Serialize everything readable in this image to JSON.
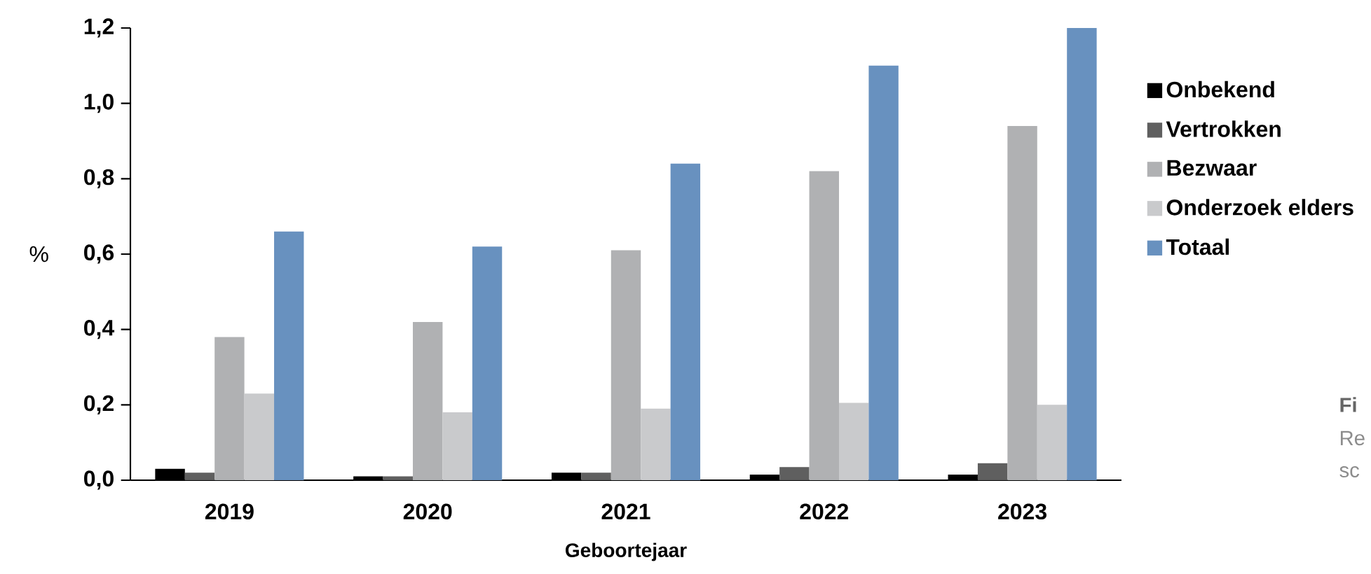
{
  "chart_data": {
    "type": "bar",
    "xlabel": "Geboortejaar",
    "ylabel": "%",
    "categories": [
      "2019",
      "2020",
      "2021",
      "2022",
      "2023"
    ],
    "series": [
      {
        "name": "Onbekend",
        "color": "#000000",
        "values": [
          0.03,
          0.01,
          0.02,
          0.015,
          0.015
        ]
      },
      {
        "name": "Vertrokken",
        "color": "#5f5f5f",
        "values": [
          0.02,
          0.01,
          0.02,
          0.035,
          0.045
        ]
      },
      {
        "name": "Bezwaar",
        "color": "#b0b1b3",
        "values": [
          0.38,
          0.42,
          0.61,
          0.82,
          0.94
        ]
      },
      {
        "name": "Onderzoek elders",
        "color": "#c9cacc",
        "values": [
          0.23,
          0.18,
          0.19,
          0.205,
          0.2
        ]
      },
      {
        "name": "Totaal",
        "color": "#6891bf",
        "values": [
          0.66,
          0.62,
          0.84,
          1.1,
          1.2
        ]
      }
    ],
    "ylim": [
      0,
      1.2
    ],
    "yticks": [
      {
        "value": 0,
        "label": "0,0"
      },
      {
        "value": 0.2,
        "label": "0,2"
      },
      {
        "value": 0.4,
        "label": "0,4"
      },
      {
        "value": 0.6,
        "label": "0,6"
      },
      {
        "value": 0.8,
        "label": "0,8"
      },
      {
        "value": 1.0,
        "label": "1,0"
      },
      {
        "value": 1.2,
        "label": "1,2"
      }
    ],
    "legend": "right",
    "grid": false,
    "annotations": [
      "Fi",
      "Re",
      "sc"
    ]
  }
}
